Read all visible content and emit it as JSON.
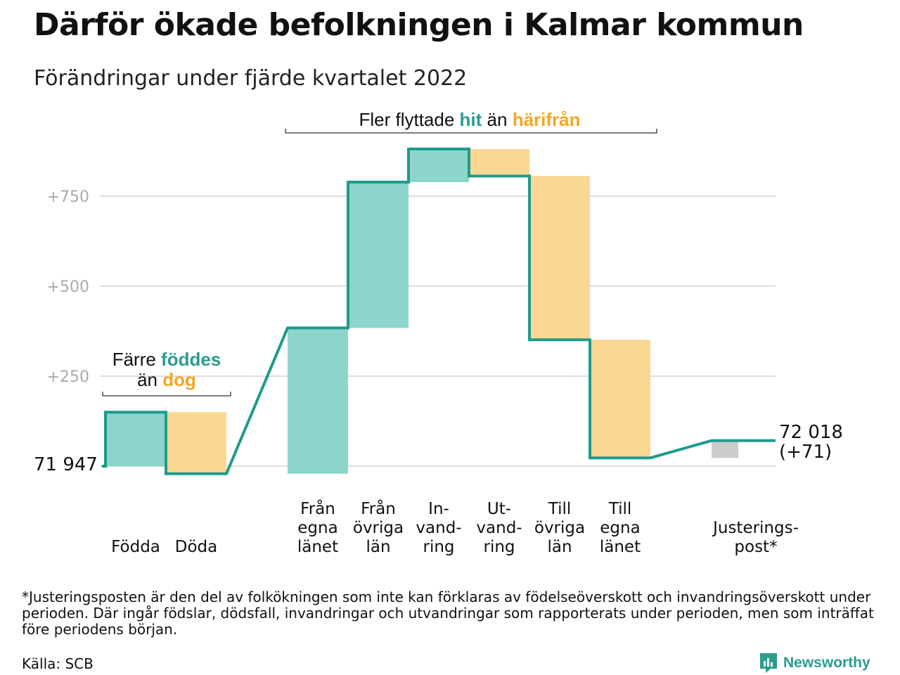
{
  "title": "Därför ökade befolkningen i Kalmar kommun",
  "subtitle": "Förändringar under fjärde kvartalet 2022",
  "colors": {
    "inflow": "#8dd5ca",
    "outflow": "#fbd794",
    "adjustment": "#cccccc",
    "line": "#1f9a8c",
    "hit": "#2a9d8f",
    "harifran": "#f3a624",
    "grid": "#dddddd"
  },
  "chart_data": {
    "type": "waterfall",
    "start_label": "71 947",
    "end_label": "72 018",
    "end_change_label": "(+71)",
    "yticks": [
      "+750",
      "+500",
      "+250"
    ],
    "ytick_values": [
      750,
      500,
      250
    ],
    "ylim": [
      -40,
      880
    ],
    "steps": [
      {
        "label": [
          "Födda"
        ],
        "value": 150,
        "kind": "inflow",
        "after_gap": false
      },
      {
        "label": [
          "Döda"
        ],
        "value": -171,
        "kind": "outflow",
        "after_gap": true
      },
      {
        "label": [
          "Från",
          "egna",
          "länet"
        ],
        "value": 405,
        "kind": "inflow",
        "after_gap": false
      },
      {
        "label": [
          "Från",
          "övriga",
          "län"
        ],
        "value": 405,
        "kind": "inflow",
        "after_gap": false
      },
      {
        "label": [
          "In-",
          "vand-",
          "ring"
        ],
        "value": 92,
        "kind": "inflow",
        "after_gap": false
      },
      {
        "label": [
          "Ut-",
          "vand-",
          "ring"
        ],
        "value": -75,
        "kind": "outflow",
        "after_gap": false
      },
      {
        "label": [
          "Till",
          "övriga",
          "län"
        ],
        "value": -455,
        "kind": "outflow",
        "after_gap": false
      },
      {
        "label": [
          "Till",
          "egna",
          "länet"
        ],
        "value": -328,
        "kind": "outflow",
        "after_gap": true
      },
      {
        "label": [
          "Justerings-",
          "post*"
        ],
        "value": 48,
        "kind": "adjustment",
        "after_gap": false
      }
    ],
    "annotations": {
      "births": {
        "line1_pre": "Färre ",
        "line1_hl": "föddes",
        "line2_pre": "än ",
        "line2_hl": "dog"
      },
      "migration": {
        "pre": "Fler flyttade ",
        "hl1": "hit",
        "mid": " än ",
        "hl2": "härifrån"
      }
    }
  },
  "footnote": "*Justeringsposten är den del av folkökningen som inte kan förklaras av födelseöverskott och invandringsöverskott under perioden. Där ingår födslar, dödsfall, invandringar och utvandringar som rapporterats under perioden, men som inträffat före periodens början.",
  "source": "Källa: SCB",
  "logo": {
    "text": "Newsworthy",
    "icon": "newsworthy-logo-icon"
  }
}
